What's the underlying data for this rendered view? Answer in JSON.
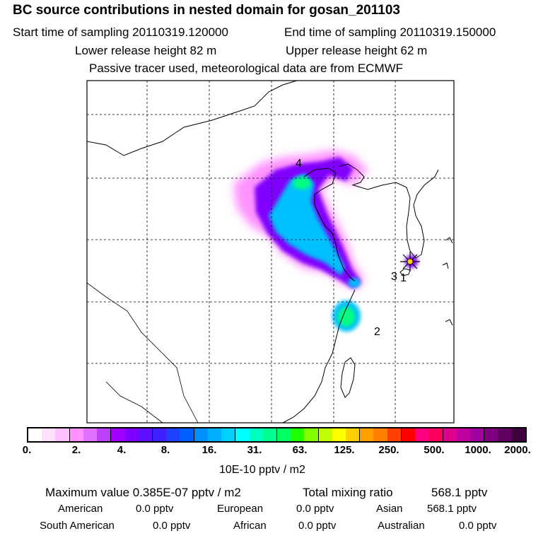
{
  "header": {
    "title": "BC  source contributions in nested domain for gosan_201103",
    "start_label": "Start time of sampling 20110319.120000",
    "end_label": "End time of sampling 20110319.150000",
    "lower_label": "Lower release height   82 m",
    "upper_label": "Upper release height   62 m",
    "tracer_label": "Passive tracer used, meteorological data are from ECMWF"
  },
  "map": {
    "region_labels": [
      "4",
      "3",
      "1",
      "2"
    ],
    "receptor_marker": "receptor-star",
    "colors": {
      "plume_low": "#ff80ff",
      "plume_mid": "#8000ff",
      "plume_high": "#00c0ff",
      "plume_peak": "#00ff80",
      "receptor_fill": "#ffd000"
    }
  },
  "colorbar": {
    "colors": [
      "#ffffff",
      "#ffe0ff",
      "#ffc0ff",
      "#ff90ff",
      "#e070ff",
      "#c040ff",
      "#a000ff",
      "#8000ff",
      "#6010ff",
      "#4020ff",
      "#2040ff",
      "#0060ff",
      "#0090ff",
      "#00b0ff",
      "#00d0ff",
      "#00ffff",
      "#00ffc0",
      "#00ff90",
      "#00ff60",
      "#20ff00",
      "#80ff00",
      "#c0ff00",
      "#ffff00",
      "#ffd000",
      "#ffa000",
      "#ff8000",
      "#ff4000",
      "#ff0000",
      "#ff0080",
      "#ff0060",
      "#e00090",
      "#c000a0",
      "#a000a0",
      "#800080",
      "#600060",
      "#400040"
    ],
    "tick_labels": [
      "0.",
      "2.",
      "4.",
      "8.",
      "16.",
      "31.",
      "63.",
      "125.",
      "250.",
      "500.",
      "1000.",
      "2000."
    ],
    "units": "10E-10 pptv / m2"
  },
  "footer": {
    "max_label": "Maximum value  0.385E-07 pptv / m2",
    "total_label": "Total mixing ratio",
    "total_value": "568.1 pptv",
    "american_label": "American",
    "american_value": "0.0 pptv",
    "european_label": "European",
    "european_value": "0.0 pptv",
    "asian_label": "Asian",
    "asian_value": "568.1 pptv",
    "south_american_label": "South American",
    "south_american_value": "0.0 pptv",
    "african_label": "African",
    "african_value": "0.0 pptv",
    "australian_label": "Australian",
    "australian_value": "0.0 pptv"
  }
}
